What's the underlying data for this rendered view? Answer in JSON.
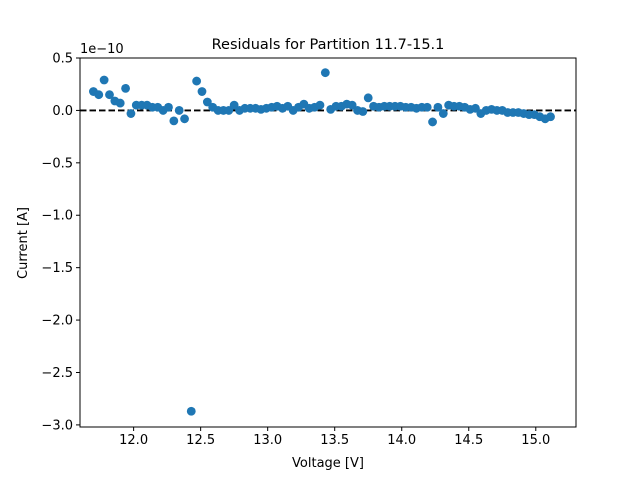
{
  "chart_data": {
    "type": "scatter",
    "title": "Residuals for Partition 11.7-15.1",
    "xlabel": "Voltage [V]",
    "ylabel": "Current [A]",
    "y_offset_label": "1e−10",
    "y_scale": 1e-10,
    "xlim": [
      11.6,
      15.3
    ],
    "ylim": [
      -3.02,
      0.5
    ],
    "x_ticks": [
      {
        "value": 12.0,
        "label": "12.0"
      },
      {
        "value": 12.5,
        "label": "12.5"
      },
      {
        "value": 13.0,
        "label": "13.0"
      },
      {
        "value": 13.5,
        "label": "13.5"
      },
      {
        "value": 14.0,
        "label": "14.0"
      },
      {
        "value": 14.5,
        "label": "14.5"
      },
      {
        "value": 15.0,
        "label": "15.0"
      }
    ],
    "y_ticks": [
      {
        "value": 0.5,
        "label": "0.5"
      },
      {
        "value": 0.0,
        "label": "0.0"
      },
      {
        "value": -0.5,
        "label": "−0.5"
      },
      {
        "value": -1.0,
        "label": "−1.0"
      },
      {
        "value": -1.5,
        "label": "−1.5"
      },
      {
        "value": -2.0,
        "label": "−2.0"
      },
      {
        "value": -2.5,
        "label": "−2.5"
      },
      {
        "value": -3.0,
        "label": "−3.0"
      }
    ],
    "grid": false,
    "reference_line": {
      "y": 0.0,
      "style": "dashed",
      "color": "#000000"
    },
    "marker_color": "#1f77b4",
    "series": [
      {
        "x": [
          11.7,
          11.74,
          11.78,
          11.82,
          11.86,
          11.9,
          11.94,
          11.98,
          12.02,
          12.06,
          12.1,
          12.14,
          12.18,
          12.22,
          12.26,
          12.3,
          12.34,
          12.38,
          12.43,
          12.47,
          12.51,
          12.55,
          12.59,
          12.63,
          12.67,
          12.71,
          12.75,
          12.79,
          12.83,
          12.87,
          12.91,
          12.95,
          12.99,
          13.03,
          13.07,
          13.11,
          13.15,
          13.19,
          13.23,
          13.27,
          13.31,
          13.35,
          13.39,
          13.43,
          13.47,
          13.51,
          13.55,
          13.59,
          13.63,
          13.67,
          13.71,
          13.75,
          13.79,
          13.83,
          13.87,
          13.91,
          13.95,
          13.99,
          14.03,
          14.07,
          14.11,
          14.15,
          14.19,
          14.23,
          14.27,
          14.31,
          14.35,
          14.39,
          14.43,
          14.47,
          14.51,
          14.55,
          14.59,
          14.63,
          14.67,
          14.71,
          14.75,
          14.79,
          14.83,
          14.87,
          14.91,
          14.95,
          14.99,
          15.03,
          15.07,
          15.11
        ],
        "y": [
          0.18,
          0.15,
          0.29,
          0.15,
          0.09,
          0.07,
          0.21,
          -0.03,
          0.05,
          0.05,
          0.05,
          0.03,
          0.03,
          0.0,
          0.03,
          -0.1,
          0.0,
          -0.08,
          -2.87,
          0.28,
          0.18,
          0.08,
          0.03,
          0.0,
          0.0,
          0.0,
          0.05,
          0.0,
          0.02,
          0.02,
          0.02,
          0.01,
          0.02,
          0.03,
          0.04,
          0.02,
          0.04,
          0.0,
          0.03,
          0.06,
          0.02,
          0.03,
          0.05,
          0.36,
          0.01,
          0.04,
          0.04,
          0.06,
          0.05,
          0.0,
          -0.01,
          0.12,
          0.04,
          0.03,
          0.04,
          0.04,
          0.04,
          0.04,
          0.03,
          0.03,
          0.02,
          0.03,
          0.03,
          -0.11,
          0.03,
          -0.03,
          0.05,
          0.04,
          0.04,
          0.03,
          0.01,
          0.02,
          -0.03,
          0.0,
          0.01,
          0.0,
          0.0,
          -0.02,
          -0.02,
          -0.02,
          -0.03,
          -0.04,
          -0.04,
          -0.06,
          -0.08,
          -0.06
        ]
      }
    ]
  }
}
